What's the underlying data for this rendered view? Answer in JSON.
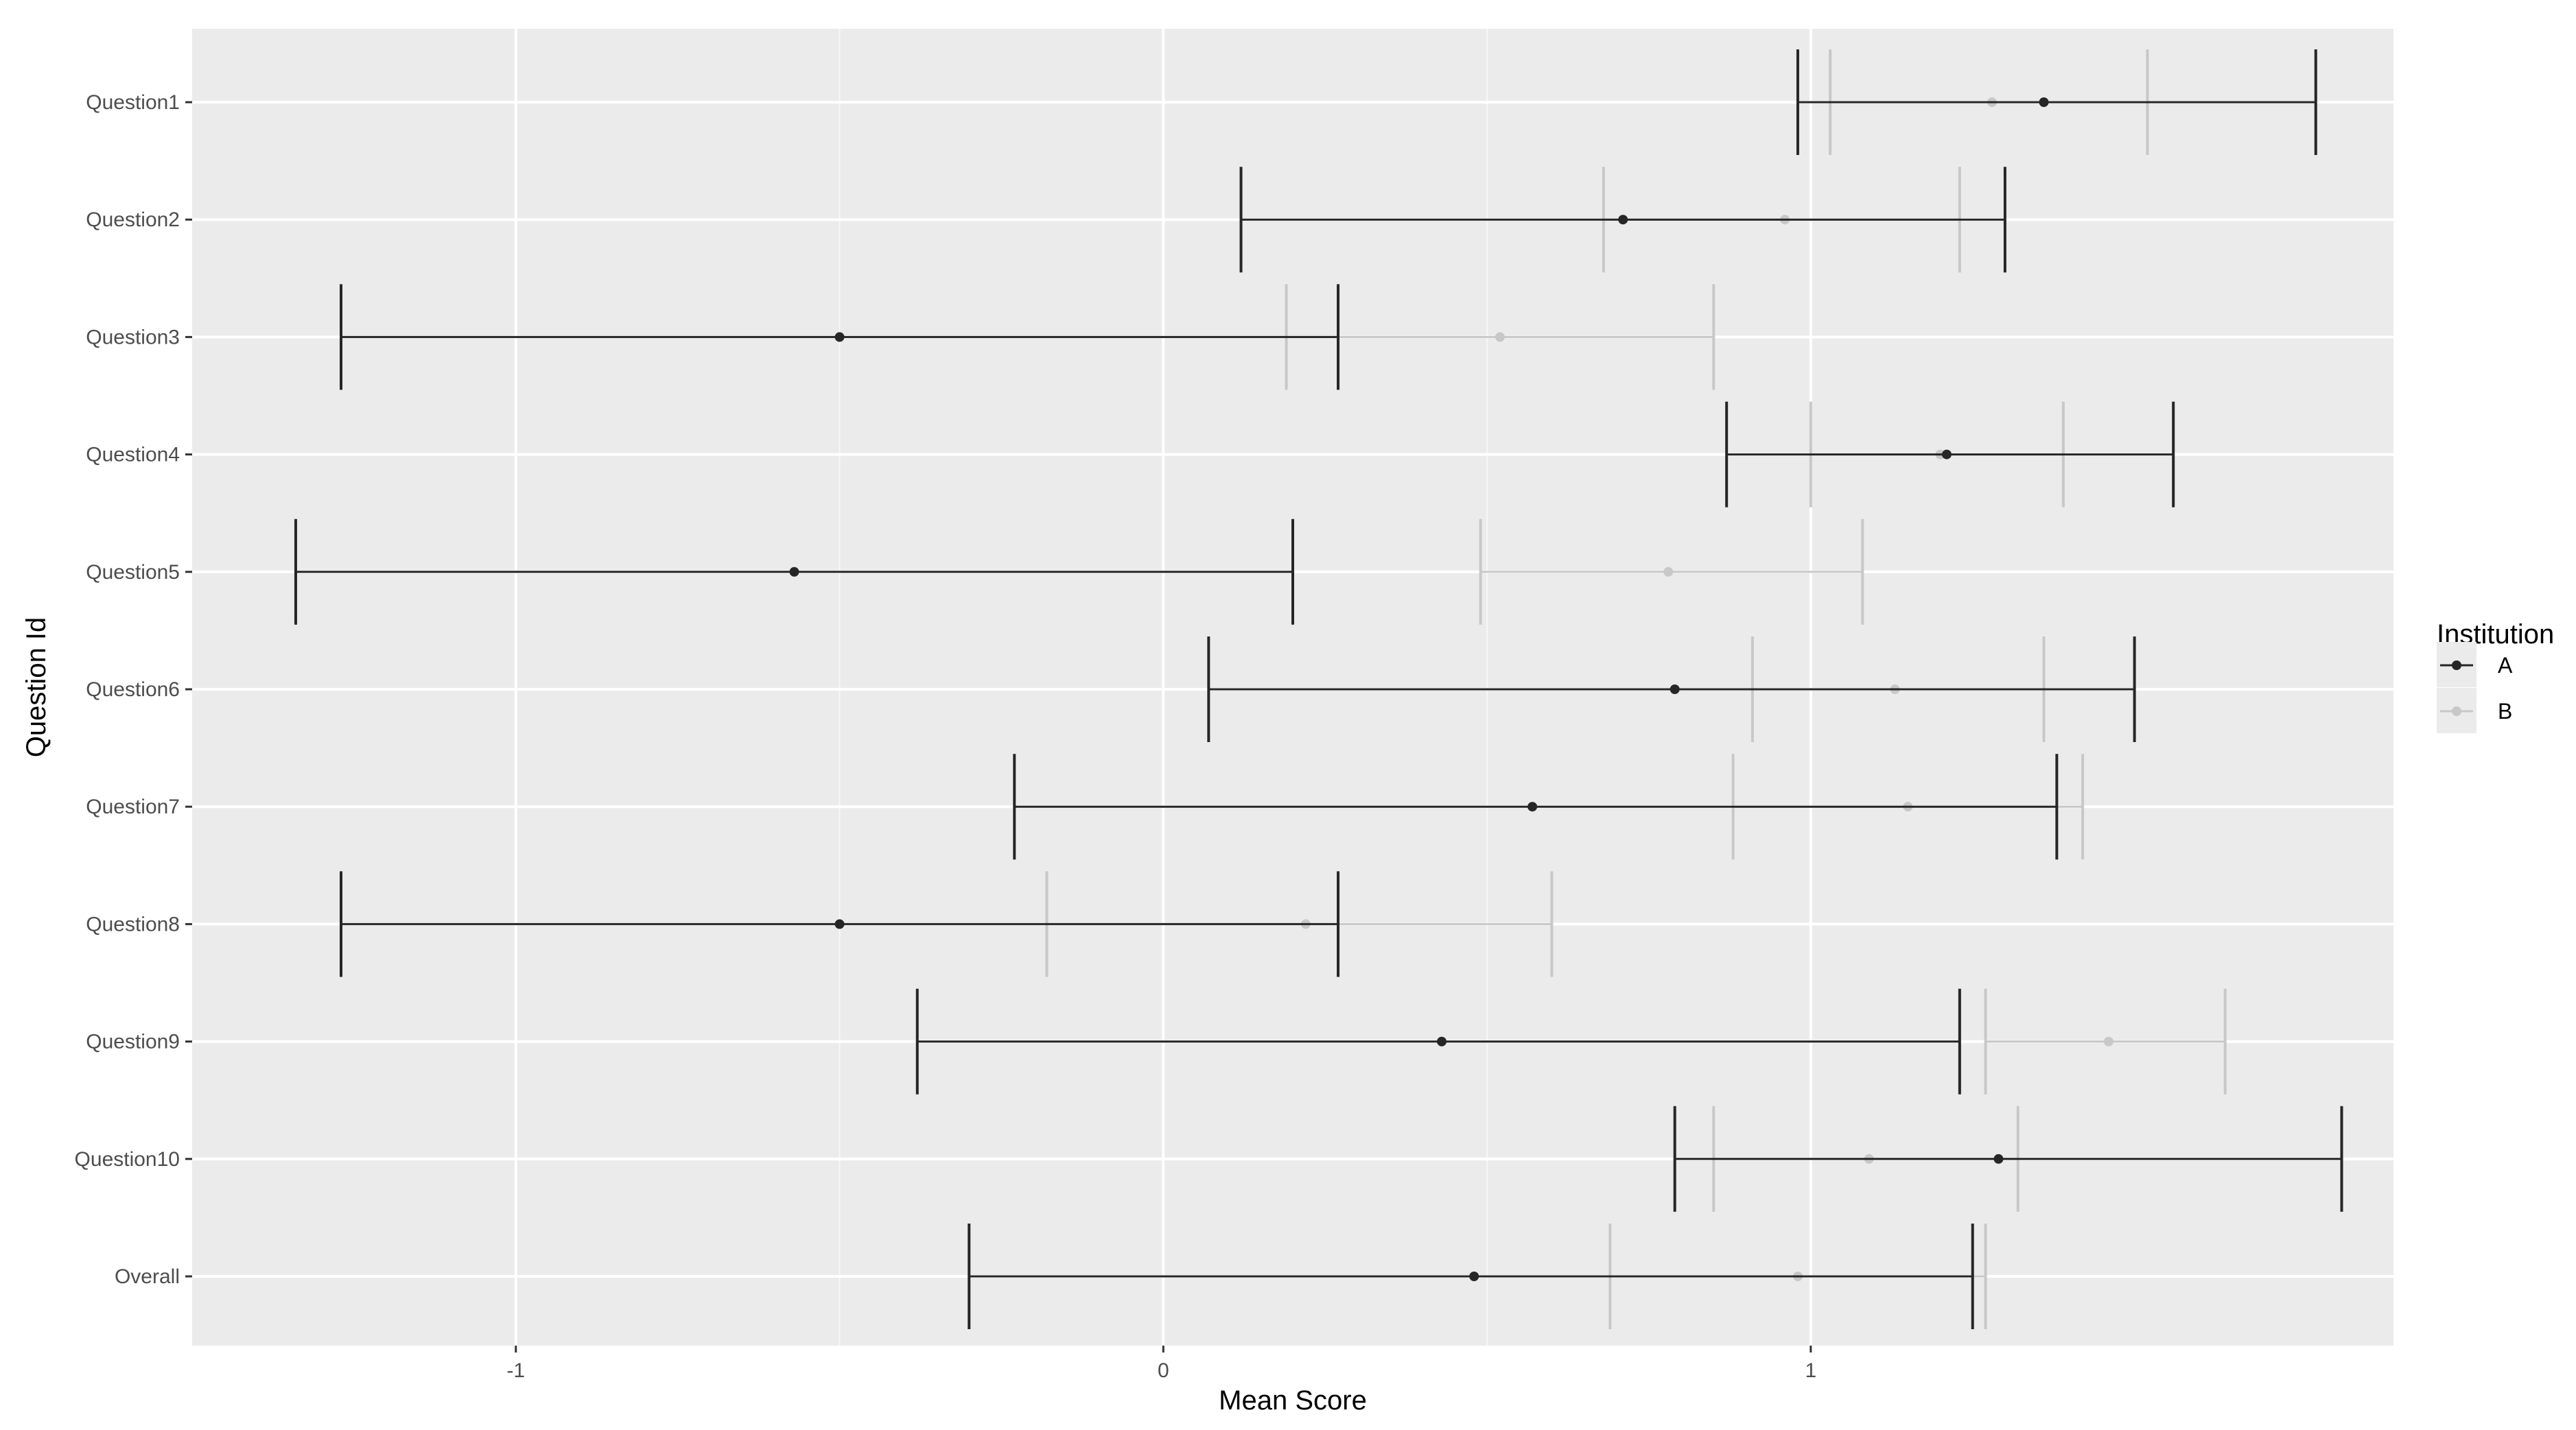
{
  "chart_data": {
    "type": "errorbar",
    "xlabel": "Mean Score",
    "ylabel": "Question Id",
    "xlim": [
      -1.5,
      1.9
    ],
    "x_ticks": [
      -1,
      0,
      1
    ],
    "x_tick_labels": [
      "-1",
      "0",
      "1"
    ],
    "categories": [
      "Question1",
      "Question2",
      "Question3",
      "Question4",
      "Question5",
      "Question6",
      "Question7",
      "Question8",
      "Question9",
      "Question10",
      "Overall"
    ],
    "legend": {
      "title": "Institution",
      "position": "right"
    },
    "grid": true,
    "series": [
      {
        "name": "A",
        "color": "#262626",
        "mean": [
          1.36,
          0.71,
          -0.5,
          1.21,
          -0.57,
          0.79,
          0.57,
          -0.5,
          0.43,
          1.29,
          0.48
        ],
        "lower": [
          0.98,
          0.12,
          -1.27,
          0.87,
          -1.34,
          0.07,
          -0.23,
          -1.27,
          -0.38,
          0.79,
          -0.3
        ],
        "upper": [
          1.78,
          1.3,
          0.27,
          1.56,
          0.2,
          1.5,
          1.38,
          0.27,
          1.23,
          1.82,
          1.25
        ]
      },
      {
        "name": "B",
        "color": "#c8c8c8",
        "mean": [
          1.28,
          0.96,
          0.52,
          1.2,
          0.78,
          1.13,
          1.15,
          0.22,
          1.46,
          1.09,
          0.98
        ],
        "lower": [
          1.03,
          0.68,
          0.19,
          1.0,
          0.49,
          0.91,
          0.88,
          -0.18,
          1.27,
          0.85,
          0.69
        ],
        "upper": [
          1.52,
          1.23,
          0.85,
          1.39,
          1.08,
          1.36,
          1.42,
          0.6,
          1.64,
          1.32,
          1.27
        ]
      }
    ]
  }
}
